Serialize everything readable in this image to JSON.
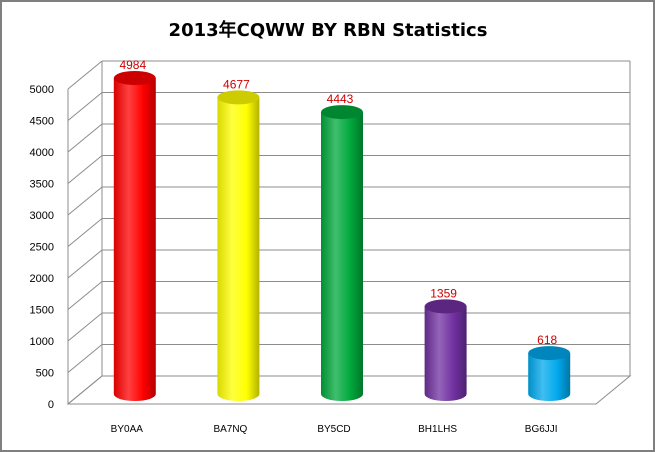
{
  "chart_data": {
    "type": "bar",
    "title": "2013年CQWW BY RBN  Statistics",
    "xlabel": "",
    "ylabel": "",
    "categories": [
      "BY0AA",
      "BA7NQ",
      "BY5CD",
      "BH1LHS",
      "BG6JJI"
    ],
    "values": [
      4984,
      4677,
      4443,
      1359,
      618
    ],
    "data_labels": [
      "4984",
      "4677",
      "4443",
      "1359",
      "618"
    ],
    "bar_colors": [
      "#ff0000",
      "#ffff00",
      "#00a83c",
      "#7030a0",
      "#00a8ec"
    ],
    "ylim": [
      0,
      5000
    ],
    "yticks": [
      "0",
      "500",
      "1000",
      "1500",
      "2000",
      "2500",
      "3000",
      "3500",
      "4000",
      "4500",
      "5000"
    ],
    "grid": true,
    "legend": "none"
  }
}
